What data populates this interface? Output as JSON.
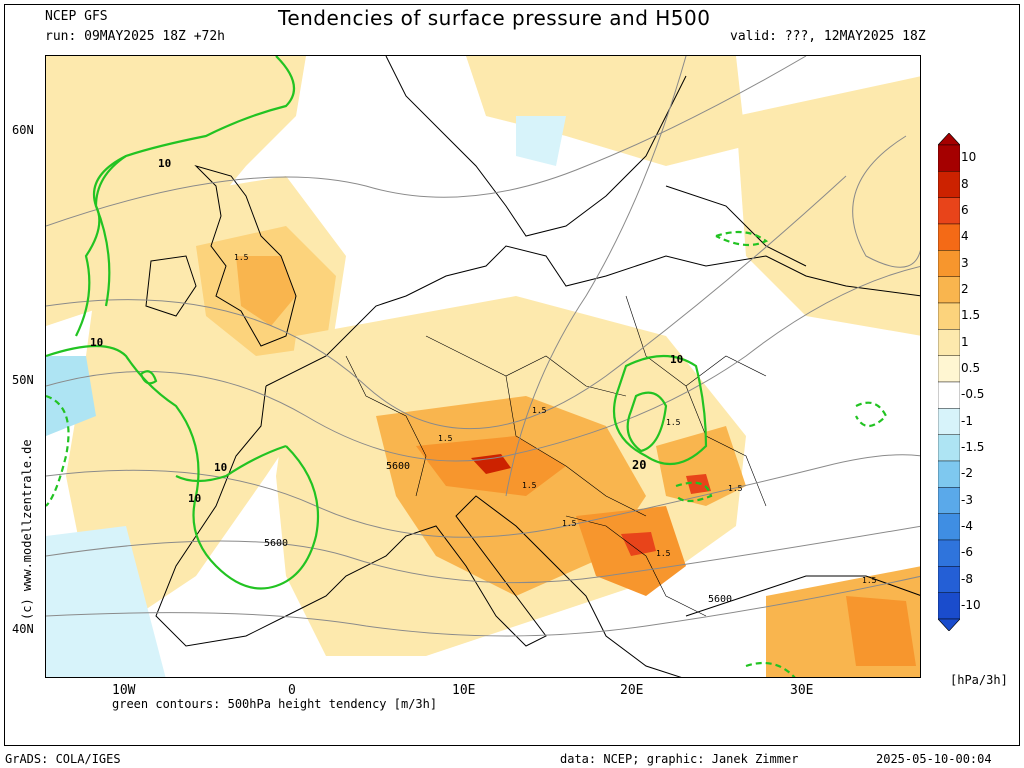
{
  "header": {
    "model": "NCEP GFS",
    "run": "run: 09MAY2025 18Z +72h",
    "title": "Tendencies of surface pressure and H500",
    "valid": "valid: ???, 12MAY2025 18Z"
  },
  "map": {
    "region": "Europe",
    "lat_labels": [
      "60N",
      "50N",
      "40N"
    ],
    "lon_labels": [
      "10W",
      "0",
      "10E",
      "20E",
      "30E"
    ],
    "green_caption": "green contours: 500hPa height tendency [m/3h]",
    "contour_labels": [
      "10",
      "10",
      "10",
      "10",
      "10",
      "20",
      "5600",
      "5600",
      "5600"
    ],
    "pressure_labels": [
      "1.5",
      "1.5",
      "1.5",
      "1.5",
      "1.5",
      "1.5",
      "1.5",
      "1.5",
      "1.5"
    ],
    "copyright": "(c) www.modellzentrale.de"
  },
  "colorbar": {
    "labels": [
      "10",
      "8",
      "6",
      "4",
      "3",
      "2",
      "1.5",
      "1",
      "0.5",
      "-0.5",
      "-1",
      "-1.5",
      "-2",
      "-3",
      "-4",
      "-6",
      "-8",
      "-10"
    ],
    "colors": [
      "#a50000",
      "#cc2200",
      "#e8441a",
      "#f46a16",
      "#f7962d",
      "#f9b54e",
      "#fcd37c",
      "#fde9ad",
      "#fff6d2",
      "#ffffff",
      "#d7f3fa",
      "#aee4f3",
      "#7ec8ef",
      "#5aa9ea",
      "#3f8ee3",
      "#2f74dc",
      "#245fd6",
      "#1a4ccc"
    ],
    "units": "[hPa/3h]"
  },
  "footer": {
    "grads": "GrADS: COLA/IGES",
    "data": "data: NCEP; graphic: Janek Zimmer",
    "timestamp": "2025-05-10-00:04"
  }
}
